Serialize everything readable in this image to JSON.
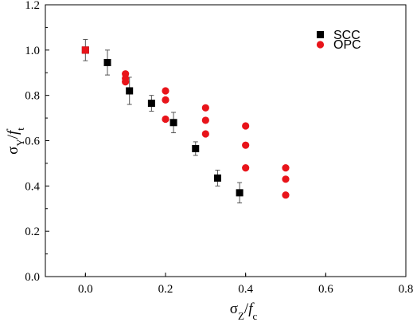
{
  "chart_data": {
    "type": "scatter",
    "title": "",
    "xlabel": "σZ/fc",
    "ylabel": "σY/ft",
    "xlim": [
      -0.1,
      0.8
    ],
    "ylim": [
      0.0,
      1.2
    ],
    "xticks": [
      0.0,
      0.2,
      0.4,
      0.6,
      0.8
    ],
    "yticks": [
      0.0,
      0.2,
      0.4,
      0.6,
      0.8,
      1.0,
      1.2
    ],
    "xtick_labels": [
      "0.0",
      "0.2",
      "0.4",
      "0.6",
      "0.8"
    ],
    "ytick_labels": [
      "0.0",
      "0.2",
      "0.4",
      "0.6",
      "0.8",
      "1.0",
      "1.2"
    ],
    "grid": false,
    "legend_position": "top-right",
    "series": [
      {
        "name": "SCC",
        "marker": "square",
        "color": "#000000",
        "points": [
          {
            "x": 0.0,
            "y": 1.0,
            "err": 0.047
          },
          {
            "x": 0.055,
            "y": 0.945,
            "err": 0.055
          },
          {
            "x": 0.11,
            "y": 0.82,
            "err": 0.06
          },
          {
            "x": 0.165,
            "y": 0.765,
            "err": 0.035
          },
          {
            "x": 0.22,
            "y": 0.68,
            "err": 0.045
          },
          {
            "x": 0.275,
            "y": 0.565,
            "err": 0.03
          },
          {
            "x": 0.33,
            "y": 0.435,
            "err": 0.035
          },
          {
            "x": 0.385,
            "y": 0.37,
            "err": 0.045
          }
        ]
      },
      {
        "name": "OPC",
        "marker": "circle",
        "color": "#e8141a",
        "points": [
          {
            "x": 0.0,
            "y": 1.0
          },
          {
            "x": 0.1,
            "y": 0.895
          },
          {
            "x": 0.1,
            "y": 0.875
          },
          {
            "x": 0.1,
            "y": 0.86
          },
          {
            "x": 0.2,
            "y": 0.82
          },
          {
            "x": 0.2,
            "y": 0.78
          },
          {
            "x": 0.2,
            "y": 0.695
          },
          {
            "x": 0.3,
            "y": 0.745
          },
          {
            "x": 0.3,
            "y": 0.69
          },
          {
            "x": 0.3,
            "y": 0.63
          },
          {
            "x": 0.4,
            "y": 0.665
          },
          {
            "x": 0.4,
            "y": 0.58
          },
          {
            "x": 0.4,
            "y": 0.48
          },
          {
            "x": 0.5,
            "y": 0.48
          },
          {
            "x": 0.5,
            "y": 0.43
          },
          {
            "x": 0.5,
            "y": 0.36
          }
        ]
      }
    ]
  }
}
